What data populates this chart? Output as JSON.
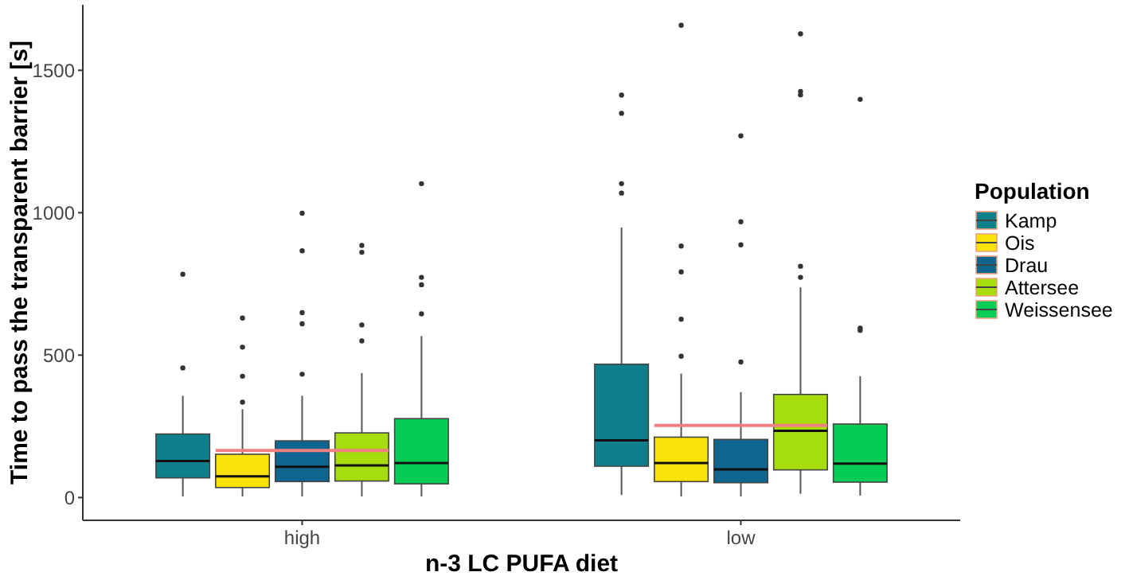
{
  "chart_data": {
    "type": "box",
    "xlabel": "n-3 LC PUFA diet",
    "ylabel": "Time to pass the transparent barrier [s]",
    "legend_title": "Population",
    "legend": "right",
    "grid": false,
    "categories": [
      "high",
      "low"
    ],
    "ylim": [
      -80,
      1730
    ],
    "yticks": [
      0,
      500,
      1000,
      1500
    ],
    "series": [
      {
        "name": "Kamp",
        "color": "#0f7f8c",
        "boxes": [
          {
            "low": 4,
            "q1": 69,
            "median": 128,
            "q3": 223,
            "high": 357,
            "outliers": [
              455,
              784
            ]
          },
          {
            "low": 9,
            "q1": 110,
            "median": 201,
            "q3": 468,
            "high": 948,
            "outliers": [
              1069,
              1102,
              1349,
              1413
            ]
          }
        ]
      },
      {
        "name": "Ois",
        "color": "#f9e20a",
        "boxes": [
          {
            "low": 4,
            "q1": 35,
            "median": 74,
            "q3": 152,
            "high": 310,
            "outliers": [
              335,
              426,
              528,
              630
            ]
          },
          {
            "low": 4,
            "q1": 56,
            "median": 121,
            "q3": 212,
            "high": 435,
            "outliers": [
              496,
              626,
              792,
              883,
              1658
            ]
          }
        ]
      },
      {
        "name": "Drau",
        "color": "#0e6590",
        "boxes": [
          {
            "low": 4,
            "q1": 56,
            "median": 108,
            "q3": 199,
            "high": 357,
            "outliers": [
              433,
              610,
              649,
              866,
              998
            ]
          },
          {
            "low": 4,
            "q1": 52,
            "median": 99,
            "q3": 204,
            "high": 370,
            "outliers": [
              476,
              887,
              968,
              1270
            ]
          }
        ]
      },
      {
        "name": "Attersee",
        "color": "#a6dd0c",
        "boxes": [
          {
            "low": 4,
            "q1": 58,
            "median": 113,
            "q3": 227,
            "high": 437,
            "outliers": [
              550,
              606,
              861,
              885
            ]
          },
          {
            "low": 13,
            "q1": 97,
            "median": 234,
            "q3": 362,
            "high": 738,
            "outliers": [
              773,
              812,
              1414,
              1426,
              1628
            ]
          }
        ]
      },
      {
        "name": "Weissensee",
        "color": "#06cc55",
        "boxes": [
          {
            "low": 4,
            "q1": 48,
            "median": 121,
            "q3": 277,
            "high": 567,
            "outliers": [
              645,
              747,
              773,
              1102
            ]
          },
          {
            "low": 7,
            "q1": 54,
            "median": 119,
            "q3": 258,
            "high": 426,
            "outliers": [
              587,
              595,
              1398
            ]
          }
        ]
      }
    ],
    "ref_lines": [
      {
        "axis": "y",
        "value": 165,
        "color": "#f08080"
      },
      {
        "axis": "y",
        "value": 253,
        "color": "#f08080"
      }
    ]
  }
}
